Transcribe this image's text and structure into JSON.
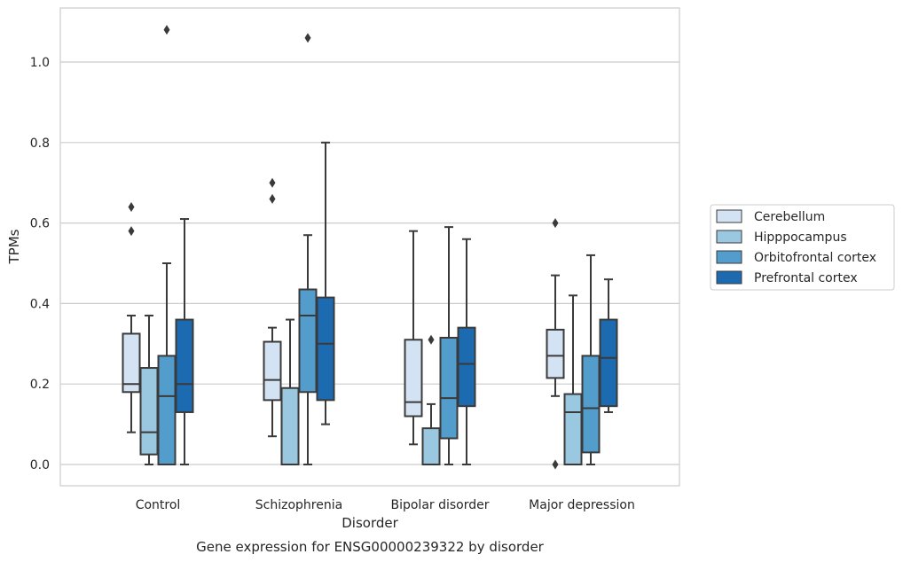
{
  "chart_data": {
    "type": "box",
    "caption": "Gene expression for ENSG00000239322 by disorder",
    "xlabel": "Disorder",
    "ylabel": "TPMs",
    "ylim": [
      -0.05,
      1.135
    ],
    "yticks": [
      0.0,
      0.2,
      0.4,
      0.6,
      0.8,
      1.0
    ],
    "ytick_labels": [
      "0.0",
      "0.2",
      "0.4",
      "0.6",
      "0.8",
      "1.0"
    ],
    "grid": "horizontal",
    "legend_position": "right",
    "categories": [
      "Control",
      "Schizophrenia",
      "Bipolar disorder",
      "Major depression"
    ],
    "series": [
      {
        "name": "Cerebellum",
        "color": "#d3e3f3",
        "boxes": [
          {
            "whisker_low": 0.08,
            "q1": 0.18,
            "median": 0.2,
            "q3": 0.325,
            "whisker_high": 0.37,
            "outliers": [
              0.58,
              0.64
            ]
          },
          {
            "whisker_low": 0.07,
            "q1": 0.16,
            "median": 0.21,
            "q3": 0.305,
            "whisker_high": 0.34,
            "outliers": [
              0.66,
              0.7
            ]
          },
          {
            "whisker_low": 0.05,
            "q1": 0.12,
            "median": 0.155,
            "q3": 0.31,
            "whisker_high": 0.58,
            "outliers": []
          },
          {
            "whisker_low": 0.17,
            "q1": 0.215,
            "median": 0.27,
            "q3": 0.335,
            "whisker_high": 0.47,
            "outliers": [
              0.0,
              0.6
            ]
          }
        ]
      },
      {
        "name": "Hipppocampus",
        "color": "#9ac8e0",
        "boxes": [
          {
            "whisker_low": 0.0,
            "q1": 0.025,
            "median": 0.08,
            "q3": 0.24,
            "whisker_high": 0.37,
            "outliers": []
          },
          {
            "whisker_low": 0.0,
            "q1": 0.0,
            "median": 0.0,
            "q3": 0.19,
            "whisker_high": 0.36,
            "outliers": []
          },
          {
            "whisker_low": 0.0,
            "q1": 0.0,
            "median": 0.0,
            "q3": 0.09,
            "whisker_high": 0.15,
            "outliers": [
              0.31
            ]
          },
          {
            "whisker_low": 0.0,
            "q1": 0.0,
            "median": 0.13,
            "q3": 0.175,
            "whisker_high": 0.42,
            "outliers": []
          }
        ]
      },
      {
        "name": "Orbitofrontal cortex",
        "color": "#529dcc",
        "boxes": [
          {
            "whisker_low": 0.0,
            "q1": 0.0,
            "median": 0.17,
            "q3": 0.27,
            "whisker_high": 0.5,
            "outliers": [
              1.08
            ]
          },
          {
            "whisker_low": 0.0,
            "q1": 0.18,
            "median": 0.37,
            "q3": 0.435,
            "whisker_high": 0.57,
            "outliers": [
              1.06
            ]
          },
          {
            "whisker_low": 0.0,
            "q1": 0.065,
            "median": 0.165,
            "q3": 0.315,
            "whisker_high": 0.59,
            "outliers": []
          },
          {
            "whisker_low": 0.0,
            "q1": 0.03,
            "median": 0.14,
            "q3": 0.27,
            "whisker_high": 0.52,
            "outliers": []
          }
        ]
      },
      {
        "name": "Prefrontal cortex",
        "color": "#1c6aaf",
        "boxes": [
          {
            "whisker_low": 0.0,
            "q1": 0.13,
            "median": 0.2,
            "q3": 0.36,
            "whisker_high": 0.61,
            "outliers": []
          },
          {
            "whisker_low": 0.1,
            "q1": 0.16,
            "median": 0.3,
            "q3": 0.415,
            "whisker_high": 0.8,
            "outliers": []
          },
          {
            "whisker_low": 0.0,
            "q1": 0.145,
            "median": 0.25,
            "q3": 0.34,
            "whisker_high": 0.56,
            "outliers": []
          },
          {
            "whisker_low": 0.13,
            "q1": 0.145,
            "median": 0.265,
            "q3": 0.36,
            "whisker_high": 0.46,
            "outliers": []
          }
        ]
      }
    ]
  }
}
